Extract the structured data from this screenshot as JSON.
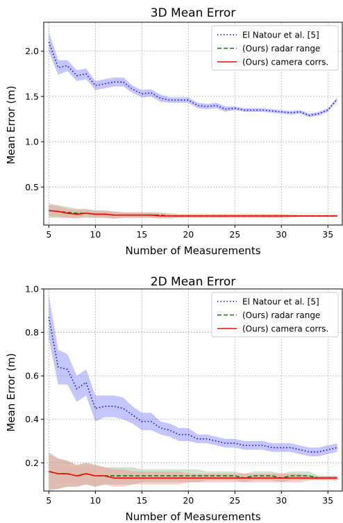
{
  "chart_data": [
    {
      "type": "line",
      "title": "3D Mean Error",
      "xlabel": "Number of Measurements",
      "ylabel": "Mean Error (m)",
      "xlim": [
        4.45,
        36.55
      ],
      "ylim": [
        0.08,
        2.32
      ],
      "xticks": [
        5,
        10,
        15,
        20,
        25,
        30,
        35
      ],
      "yticks": [
        0.5,
        1.0,
        1.5,
        2.0
      ],
      "ytick_labels": [
        "0.5",
        "1.0",
        "1.5",
        "2.0"
      ],
      "grid": true,
      "legend_position": "top-right",
      "x": [
        5,
        6,
        7,
        8,
        9,
        10,
        11,
        12,
        13,
        14,
        15,
        16,
        17,
        18,
        19,
        20,
        21,
        22,
        23,
        24,
        25,
        26,
        27,
        28,
        29,
        30,
        31,
        32,
        33,
        34,
        35,
        36
      ],
      "series": [
        {
          "name": "El Natour et al. [5]",
          "style": "dotted",
          "color": "#0000ff",
          "band_color": "#6666ff",
          "values": [
            2.1,
            1.82,
            1.84,
            1.73,
            1.75,
            1.62,
            1.64,
            1.66,
            1.66,
            1.58,
            1.53,
            1.54,
            1.48,
            1.46,
            1.46,
            1.46,
            1.4,
            1.39,
            1.4,
            1.36,
            1.37,
            1.35,
            1.35,
            1.35,
            1.34,
            1.33,
            1.32,
            1.33,
            1.29,
            1.31,
            1.35,
            1.47
          ],
          "band_half_width": [
            0.11,
            0.08,
            0.06,
            0.06,
            0.06,
            0.05,
            0.05,
            0.05,
            0.05,
            0.04,
            0.04,
            0.04,
            0.04,
            0.03,
            0.03,
            0.03,
            0.03,
            0.03,
            0.03,
            0.03,
            0.02,
            0.02,
            0.02,
            0.02,
            0.02,
            0.02,
            0.02,
            0.02,
            0.02,
            0.02,
            0.02,
            0.02
          ]
        },
        {
          "name": "(Ours) radar range",
          "style": "dashed",
          "color": "#008000",
          "band_color": "#7fb37f",
          "values": [
            0.24,
            0.23,
            0.22,
            0.21,
            0.21,
            0.2,
            0.2,
            0.19,
            0.19,
            0.19,
            0.19,
            0.19,
            0.19,
            0.18,
            0.18,
            0.18,
            0.18,
            0.18,
            0.18,
            0.18,
            0.18,
            0.18,
            0.18,
            0.18,
            0.18,
            0.18,
            0.18,
            0.18,
            0.18,
            0.18,
            0.18,
            0.18
          ],
          "band_half_width": [
            0.08,
            0.07,
            0.06,
            0.05,
            0.05,
            0.04,
            0.04,
            0.04,
            0.03,
            0.03,
            0.03,
            0.03,
            0.03,
            0.03,
            0.02,
            0.02,
            0.02,
            0.02,
            0.02,
            0.02,
            0.02,
            0.02,
            0.02,
            0.02,
            0.02,
            0.02,
            0.02,
            0.01,
            0.01,
            0.01,
            0.01,
            0.01
          ]
        },
        {
          "name": "(Ours) camera corrs.",
          "style": "solid",
          "color": "#ff0000",
          "band_color": "#ff8080",
          "values": [
            0.24,
            0.23,
            0.21,
            0.2,
            0.21,
            0.2,
            0.2,
            0.19,
            0.19,
            0.19,
            0.19,
            0.19,
            0.18,
            0.18,
            0.18,
            0.18,
            0.18,
            0.18,
            0.18,
            0.18,
            0.18,
            0.18,
            0.18,
            0.18,
            0.18,
            0.18,
            0.18,
            0.18,
            0.18,
            0.18,
            0.18,
            0.18
          ],
          "band_half_width": [
            0.06,
            0.06,
            0.05,
            0.05,
            0.04,
            0.04,
            0.04,
            0.04,
            0.03,
            0.03,
            0.03,
            0.03,
            0.03,
            0.02,
            0.02,
            0.02,
            0.02,
            0.02,
            0.02,
            0.02,
            0.02,
            0.02,
            0.02,
            0.02,
            0.02,
            0.02,
            0.01,
            0.01,
            0.01,
            0.01,
            0.01,
            0.01
          ]
        }
      ]
    },
    {
      "type": "line",
      "title": "2D Mean Error",
      "xlabel": "Number of Measurements",
      "ylabel": "Mean Error (m)",
      "xlim": [
        4.45,
        36.55
      ],
      "ylim": [
        0.07,
        1.0
      ],
      "xticks": [
        5,
        10,
        15,
        20,
        25,
        30,
        35
      ],
      "yticks": [
        0.2,
        0.4,
        0.6,
        0.8,
        1.0
      ],
      "ytick_labels": [
        "0.2",
        "0.4",
        "0.6",
        "0.8",
        "1.0"
      ],
      "grid": true,
      "legend_position": "top-right",
      "x": [
        5,
        6,
        7,
        8,
        9,
        10,
        11,
        12,
        13,
        14,
        15,
        16,
        17,
        18,
        19,
        20,
        21,
        22,
        23,
        24,
        25,
        26,
        27,
        28,
        29,
        30,
        31,
        32,
        33,
        34,
        35,
        36
      ],
      "series": [
        {
          "name": "El Natour et al. [5]",
          "style": "dotted",
          "color": "#0000ff",
          "band_color": "#6666ff",
          "values": [
            0.87,
            0.64,
            0.63,
            0.54,
            0.57,
            0.45,
            0.46,
            0.46,
            0.45,
            0.42,
            0.39,
            0.39,
            0.36,
            0.35,
            0.33,
            0.33,
            0.31,
            0.31,
            0.3,
            0.29,
            0.29,
            0.28,
            0.28,
            0.28,
            0.27,
            0.27,
            0.27,
            0.26,
            0.25,
            0.25,
            0.26,
            0.27
          ],
          "band_half_width": [
            0.1,
            0.08,
            0.07,
            0.06,
            0.06,
            0.06,
            0.05,
            0.05,
            0.05,
            0.04,
            0.04,
            0.04,
            0.03,
            0.03,
            0.03,
            0.03,
            0.02,
            0.02,
            0.02,
            0.02,
            0.02,
            0.02,
            0.02,
            0.02,
            0.02,
            0.02,
            0.02,
            0.02,
            0.02,
            0.02,
            0.02,
            0.02
          ]
        },
        {
          "name": "(Ours) radar range",
          "style": "dashed",
          "color": "#008000",
          "band_color": "#7fb37f",
          "values": [
            0.16,
            0.15,
            0.15,
            0.14,
            0.15,
            0.14,
            0.14,
            0.14,
            0.14,
            0.14,
            0.14,
            0.14,
            0.14,
            0.14,
            0.14,
            0.14,
            0.14,
            0.14,
            0.14,
            0.14,
            0.14,
            0.13,
            0.14,
            0.14,
            0.14,
            0.13,
            0.14,
            0.14,
            0.14,
            0.13,
            0.13,
            0.13
          ],
          "band_half_width": [
            0.09,
            0.07,
            0.06,
            0.05,
            0.05,
            0.05,
            0.04,
            0.04,
            0.04,
            0.04,
            0.03,
            0.03,
            0.03,
            0.03,
            0.03,
            0.03,
            0.03,
            0.02,
            0.02,
            0.02,
            0.02,
            0.02,
            0.02,
            0.02,
            0.02,
            0.02,
            0.02,
            0.02,
            0.02,
            0.01,
            0.01,
            0.01
          ]
        },
        {
          "name": "(Ours) camera corrs.",
          "style": "solid",
          "color": "#ff0000",
          "band_color": "#ff8080",
          "values": [
            0.16,
            0.15,
            0.15,
            0.14,
            0.15,
            0.14,
            0.14,
            0.13,
            0.13,
            0.13,
            0.13,
            0.13,
            0.13,
            0.13,
            0.13,
            0.13,
            0.13,
            0.13,
            0.13,
            0.13,
            0.13,
            0.13,
            0.13,
            0.13,
            0.13,
            0.13,
            0.13,
            0.13,
            0.13,
            0.13,
            0.13,
            0.13
          ],
          "band_half_width": [
            0.08,
            0.07,
            0.06,
            0.05,
            0.05,
            0.05,
            0.04,
            0.04,
            0.04,
            0.03,
            0.03,
            0.03,
            0.03,
            0.03,
            0.03,
            0.02,
            0.02,
            0.02,
            0.02,
            0.02,
            0.02,
            0.02,
            0.02,
            0.02,
            0.02,
            0.02,
            0.02,
            0.02,
            0.01,
            0.01,
            0.01,
            0.01
          ]
        }
      ]
    }
  ]
}
